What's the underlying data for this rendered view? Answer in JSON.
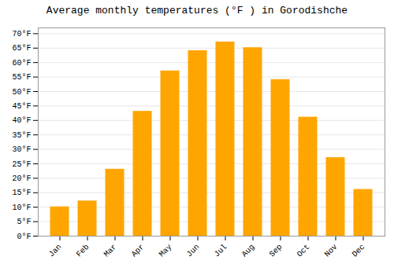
{
  "chart_data": {
    "type": "bar",
    "title": "Average monthly temperatures (°F ) in Gorodishche",
    "categories": [
      "Jan",
      "Feb",
      "Mar",
      "Apr",
      "May",
      "Jun",
      "Jul",
      "Aug",
      "Sep",
      "Oct",
      "Nov",
      "Dec"
    ],
    "values": [
      10,
      12,
      23,
      43,
      57,
      64,
      67,
      65,
      54,
      41,
      27,
      16
    ],
    "color": "#FFA500",
    "ylim": [
      0,
      72
    ],
    "yticks": [
      {
        "value": 0,
        "label": "0°F"
      },
      {
        "value": 5,
        "label": "5°F"
      },
      {
        "value": 10,
        "label": "10°F"
      },
      {
        "value": 15,
        "label": "15°F"
      },
      {
        "value": 20,
        "label": "20°F"
      },
      {
        "value": 25,
        "label": "25°F"
      },
      {
        "value": 30,
        "label": "30°F"
      },
      {
        "value": 35,
        "label": "35°F"
      },
      {
        "value": 40,
        "label": "40°F"
      },
      {
        "value": 45,
        "label": "45°F"
      },
      {
        "value": 50,
        "label": "50°F"
      },
      {
        "value": 55,
        "label": "55°F"
      },
      {
        "value": 60,
        "label": "60°F"
      },
      {
        "value": 65,
        "label": "65°F"
      },
      {
        "value": 70,
        "label": "70°F"
      }
    ],
    "grid": true
  }
}
